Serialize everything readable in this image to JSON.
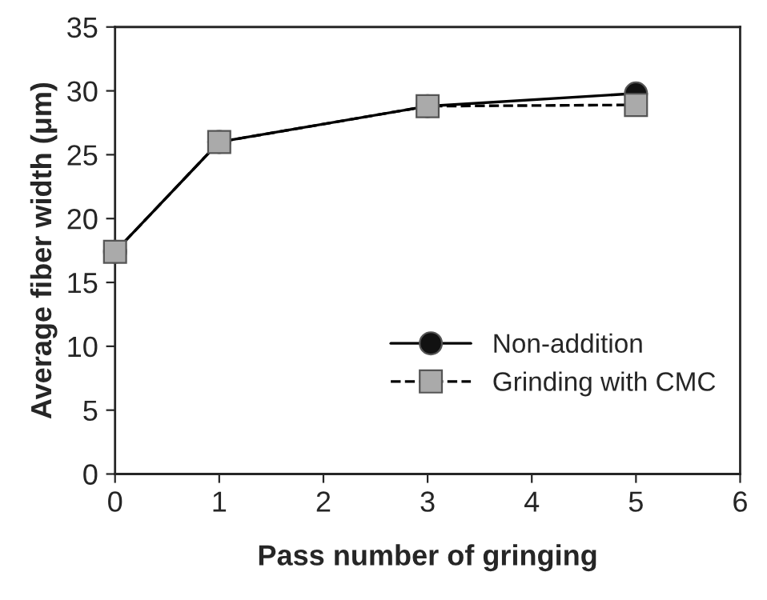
{
  "chart_data": {
    "type": "line",
    "xlabel": "Pass number of gringing",
    "ylabel": "Average fiber width (μm)",
    "x": [
      0,
      1,
      3,
      5
    ],
    "series": [
      {
        "name": "Non-addition",
        "color": "#111111",
        "marker": "circle",
        "line_style": "solid",
        "values": [
          17.4,
          26.0,
          28.8,
          29.8
        ]
      },
      {
        "name": "Grinding with CMC",
        "color": "#aaaaaa",
        "marker": "square",
        "line_style": "dashed",
        "values": [
          17.4,
          26.0,
          28.8,
          28.9
        ]
      }
    ],
    "xlim": [
      0,
      6
    ],
    "xticks": [
      0,
      1,
      2,
      3,
      4,
      5,
      6
    ],
    "ylim": [
      0,
      35
    ],
    "yticks": [
      0,
      5,
      10,
      15,
      20,
      25,
      30,
      35
    ],
    "grid": false,
    "legend": "bottom right"
  }
}
